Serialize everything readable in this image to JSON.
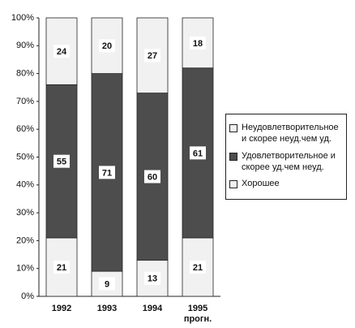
{
  "chart_data": {
    "type": "stacked-bar",
    "categories": [
      "1992",
      "1993",
      "1994",
      "1995\nпрогн."
    ],
    "series": [
      {
        "name": "Хорошее",
        "color": "#f1f1f1",
        "values": [
          21,
          9,
          13,
          21
        ]
      },
      {
        "name": "Удовлетворительное и скорее уд.чем неуд.",
        "color": "#4d4d4d",
        "values": [
          55,
          71,
          60,
          61
        ]
      },
      {
        "name": "Неудовлетворительное и скорее неуд.чем уд.",
        "color": "#f1f1f1",
        "values": [
          24,
          20,
          27,
          18
        ]
      }
    ],
    "ylim": [
      0,
      100
    ],
    "yticks": [
      {
        "value": 0,
        "label": "0%"
      },
      {
        "value": 10,
        "label": "10%"
      },
      {
        "value": 20,
        "label": "20%"
      },
      {
        "value": 30,
        "label": "30%"
      },
      {
        "value": 40,
        "label": "40%"
      },
      {
        "value": 50,
        "label": "50%"
      },
      {
        "value": 60,
        "label": "60%"
      },
      {
        "value": 70,
        "label": "70%"
      },
      {
        "value": 80,
        "label": "80%"
      },
      {
        "value": 90,
        "label": "90%"
      },
      {
        "value": 100,
        "label": "100%"
      }
    ],
    "legend": "right"
  }
}
